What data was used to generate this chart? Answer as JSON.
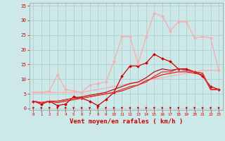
{
  "background_color": "#cce8e8",
  "grid_color": "#aacccc",
  "xlabel": "Vent moyen/en rafales ( km/h )",
  "xlabel_color": "#cc0000",
  "xlabel_fontsize": 6.5,
  "xtick_color": "#cc0000",
  "ytick_color": "#cc0000",
  "xlim": [
    -0.5,
    23.5
  ],
  "ylim": [
    -0.5,
    36
  ],
  "yticks": [
    0,
    5,
    10,
    15,
    20,
    25,
    30,
    35
  ],
  "xticks": [
    0,
    1,
    2,
    3,
    4,
    5,
    6,
    7,
    8,
    9,
    10,
    11,
    12,
    13,
    14,
    15,
    16,
    17,
    18,
    19,
    20,
    21,
    22,
    23
  ],
  "series": [
    {
      "x": [
        0,
        1,
        2,
        3,
        4,
        5,
        6,
        7,
        8,
        9,
        10,
        11,
        12,
        13,
        14,
        15,
        16,
        17,
        18,
        19,
        20,
        21,
        22,
        23
      ],
      "y": [
        5.5,
        5.5,
        5.5,
        5.5,
        5.5,
        5.5,
        5.5,
        6.0,
        6.5,
        7.0,
        7.5,
        8.0,
        8.5,
        9.0,
        9.5,
        10.0,
        10.5,
        11.0,
        11.5,
        12.0,
        12.5,
        13.0,
        13.0,
        13.0
      ],
      "color": "#ffaaaa",
      "lw": 0.9,
      "marker": null,
      "ms": 0
    },
    {
      "x": [
        0,
        1,
        2,
        3,
        4,
        5,
        6,
        7,
        8,
        9,
        10,
        11,
        12,
        13,
        14,
        15,
        16,
        17,
        18,
        19,
        20,
        21,
        22,
        23
      ],
      "y": [
        2.5,
        1.5,
        2.5,
        1.0,
        1.5,
        4.0,
        3.5,
        2.5,
        1.0,
        3.0,
        5.5,
        11.0,
        14.5,
        14.5,
        15.5,
        18.5,
        17.0,
        16.0,
        13.5,
        13.5,
        12.5,
        11.0,
        7.5,
        6.5
      ],
      "color": "#cc0000",
      "lw": 0.9,
      "marker": "D",
      "ms": 2.0
    },
    {
      "x": [
        0,
        1,
        2,
        3,
        4,
        5,
        6,
        7,
        8,
        9,
        10,
        11,
        12,
        13,
        14,
        15,
        16,
        17,
        18,
        19,
        20,
        21,
        22,
        23
      ],
      "y": [
        5.5,
        5.5,
        6.0,
        11.5,
        6.5,
        6.0,
        5.5,
        8.0,
        8.5,
        9.0,
        16.0,
        24.5,
        24.5,
        15.0,
        24.5,
        32.5,
        31.5,
        26.5,
        29.5,
        29.5,
        24.0,
        24.5,
        24.0,
        13.0
      ],
      "color": "#ffaaaa",
      "lw": 0.9,
      "marker": "D",
      "ms": 2.0
    },
    {
      "x": [
        0,
        1,
        2,
        3,
        4,
        5,
        6,
        7,
        8,
        9,
        10,
        11,
        12,
        13,
        14,
        15,
        16,
        17,
        18,
        19,
        20,
        21,
        22,
        23
      ],
      "y": [
        2.5,
        2.0,
        2.5,
        2.0,
        2.5,
        3.0,
        3.5,
        4.0,
        4.5,
        5.0,
        5.5,
        6.0,
        7.0,
        8.0,
        9.5,
        10.5,
        11.5,
        12.0,
        12.5,
        12.5,
        12.0,
        11.5,
        6.5,
        6.5
      ],
      "color": "#dd2222",
      "lw": 0.9,
      "marker": null,
      "ms": 0
    },
    {
      "x": [
        0,
        1,
        2,
        3,
        4,
        5,
        6,
        7,
        8,
        9,
        10,
        11,
        12,
        13,
        14,
        15,
        16,
        17,
        18,
        19,
        20,
        21,
        22,
        23
      ],
      "y": [
        2.5,
        2.0,
        2.5,
        2.5,
        3.0,
        3.5,
        4.0,
        4.5,
        5.0,
        5.5,
        6.5,
        7.5,
        8.5,
        9.0,
        10.5,
        12.5,
        13.5,
        13.0,
        13.5,
        13.0,
        12.5,
        12.0,
        6.5,
        6.5
      ],
      "color": "#bb1111",
      "lw": 0.9,
      "marker": null,
      "ms": 0
    },
    {
      "x": [
        0,
        1,
        2,
        3,
        4,
        5,
        6,
        7,
        8,
        9,
        10,
        11,
        12,
        13,
        14,
        15,
        16,
        17,
        18,
        19,
        20,
        21,
        22,
        23
      ],
      "y": [
        2.5,
        2.0,
        2.5,
        2.5,
        3.0,
        3.5,
        3.5,
        4.0,
        4.5,
        5.0,
        5.5,
        6.5,
        7.5,
        8.0,
        9.0,
        11.0,
        12.5,
        12.5,
        13.5,
        13.0,
        12.5,
        12.0,
        6.5,
        6.5
      ],
      "color": "#ee3333",
      "lw": 0.9,
      "marker": null,
      "ms": 0
    }
  ],
  "wind_arrow_color": "#cc0000",
  "fig_width": 3.2,
  "fig_height": 2.0,
  "dpi": 100
}
